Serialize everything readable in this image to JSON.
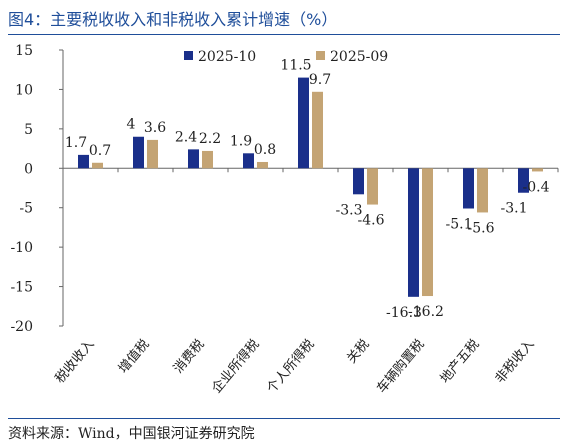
{
  "title": "图4：主要税收收入和非税收入累计增速（%）",
  "source": "资料来源：Wind，中国银河证券研究院",
  "colors": {
    "accent": "#1f4e9a",
    "series_a": "#1a2f8a",
    "series_b": "#c4a474"
  },
  "chart_data": {
    "type": "bar",
    "title": "",
    "xlabel": "",
    "ylabel": "",
    "ylim": [
      -20,
      15
    ],
    "yticks": [
      15,
      10,
      5,
      0,
      -5,
      -10,
      -15,
      -20
    ],
    "grid": false,
    "legend_position": "top-right",
    "categories": [
      "税收收入",
      "增值税",
      "消费税",
      "企业所得税",
      "个人所得税",
      "关税",
      "车辆购置税",
      "地产五税",
      "非税收入"
    ],
    "series": [
      {
        "name": "2025-10",
        "color": "#1a2f8a",
        "values": [
          1.7,
          4.0,
          2.4,
          1.9,
          11.5,
          -3.3,
          -16.3,
          -5.1,
          -3.1
        ]
      },
      {
        "name": "2025-09",
        "color": "#c4a474",
        "values": [
          0.7,
          3.6,
          2.2,
          0.8,
          9.7,
          -4.6,
          -16.2,
          -5.6,
          -0.4
        ]
      }
    ]
  }
}
